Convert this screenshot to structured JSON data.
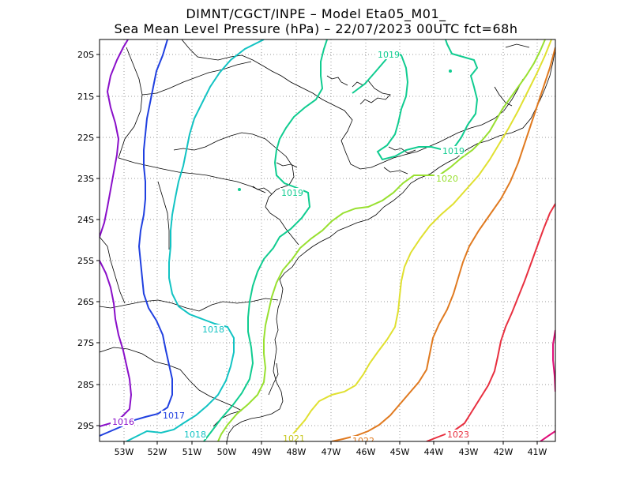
{
  "title": {
    "line1": "DIMNT/CGCT/INPE –  Model Eta05_M01_",
    "line2": "Sea Mean Level Pressure (hPa) – 22/07/2023 00UTC fct=68h"
  },
  "axes": {
    "lat_labels": [
      "20S",
      "21S",
      "22S",
      "23S",
      "24S",
      "25S",
      "26S",
      "27S",
      "28S",
      "29S"
    ],
    "lon_labels": [
      "53W",
      "52W",
      "51W",
      "50W",
      "49W",
      "48W",
      "47W",
      "46W",
      "45W",
      "44W",
      "43W",
      "42W",
      "41W"
    ]
  },
  "contour_labels": [
    {
      "text": "1016",
      "color": "#8a0fc9"
    },
    {
      "text": "1017",
      "color": "#2040e0"
    },
    {
      "text": "1018",
      "color": "#12c3c3"
    },
    {
      "text": "1018",
      "color": "#12c3c3"
    },
    {
      "text": "1019",
      "color": "#10cc90"
    },
    {
      "text": "1019",
      "color": "#10cc90"
    },
    {
      "text": "1019",
      "color": "#10cc90"
    },
    {
      "text": "1020",
      "color": "#98e030"
    },
    {
      "text": "1021",
      "color": "#e0e030"
    },
    {
      "text": "1022",
      "color": "#e07a20"
    },
    {
      "text": "1023",
      "color": "#e83040"
    }
  ],
  "colors": {
    "c1016": "#8a0fc9",
    "c1017": "#2040e0",
    "c1018": "#12c3c3",
    "c1019": "#10cc90",
    "c1020": "#98e030",
    "c1021": "#e0e030",
    "c1022": "#e07a20",
    "c1023": "#e83040",
    "c1024": "#e0107a"
  }
}
